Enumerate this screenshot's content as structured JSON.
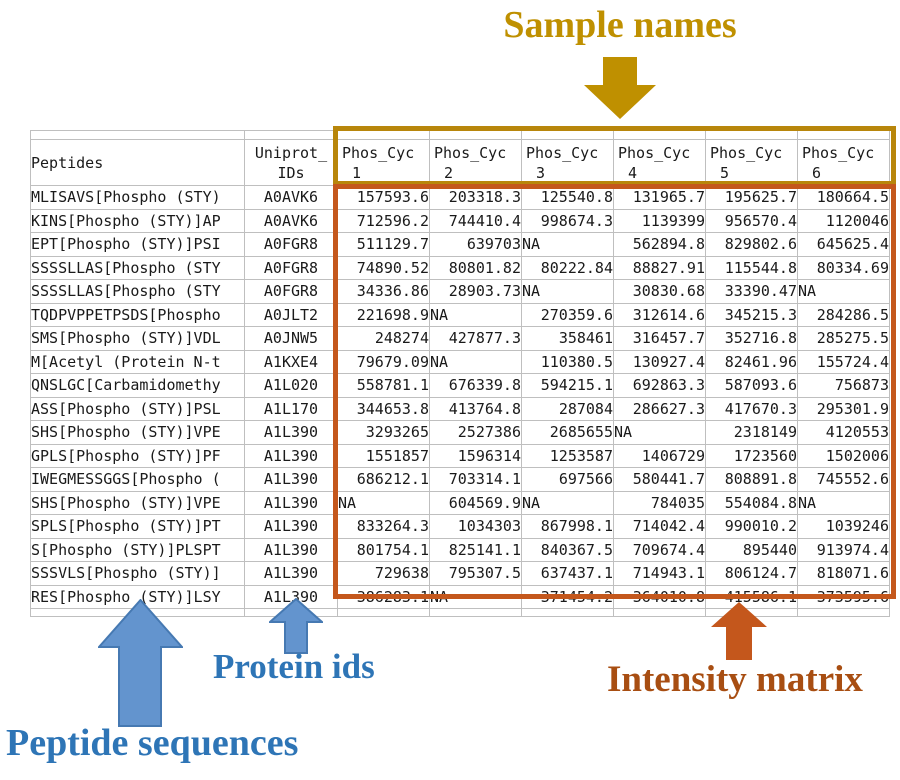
{
  "annotations": {
    "sample_names": "Sample names",
    "peptide_sequences": "Peptide sequences",
    "protein_ids": "Protein ids",
    "intensity_matrix": "Intensity matrix"
  },
  "colors": {
    "header_fill_blue": "#9CC2E5",
    "header_fill_yellow": "#FFFF00",
    "sample_box_border": "#B8860B",
    "sample_label": "#BF9000",
    "matrix_box_border": "#C4571C",
    "matrix_label": "#A84E12",
    "blue_label": "#2E75B6",
    "blue_arrow_fill": "#6394CE",
    "orange_arrow_fill": "#C4571C",
    "gridline": "#BFBFBF"
  },
  "table": {
    "peptides_header": "Peptides",
    "uniprot_header_line1": "Uniprot_",
    "uniprot_header_line2": "IDs",
    "sample_headers": [
      {
        "name": "Phos_Cyc",
        "num": "1"
      },
      {
        "name": "Phos_Cyc",
        "num": "2"
      },
      {
        "name": "Phos_Cyc",
        "num": "3"
      },
      {
        "name": "Phos_Cyc",
        "num": "4"
      },
      {
        "name": "Phos_Cyc",
        "num": "5"
      },
      {
        "name": "Phos_Cyc",
        "num": "6"
      }
    ],
    "rows": [
      {
        "peptide": "MLISAVS[Phospho (STY)",
        "uniprot": "A0AVK6",
        "values": [
          "157593.6",
          "203318.3",
          "125540.8",
          "131965.7",
          "195625.7",
          "180664.5"
        ]
      },
      {
        "peptide": "KINS[Phospho (STY)]AP",
        "uniprot": "A0AVK6",
        "values": [
          "712596.2",
          "744410.4",
          "998674.3",
          "1139399",
          "956570.4",
          "1120046"
        ]
      },
      {
        "peptide": "EPT[Phospho (STY)]PSI",
        "uniprot": "A0FGR8",
        "values": [
          "511129.7",
          "639703",
          "NA",
          "562894.8",
          "829802.6",
          "645625.4"
        ]
      },
      {
        "peptide": "SSSSLLAS[Phospho (STY",
        "uniprot": "A0FGR8",
        "values": [
          "74890.52",
          "80801.82",
          "80222.84",
          "88827.91",
          "115544.8",
          "80334.69"
        ]
      },
      {
        "peptide": "SSSSLLAS[Phospho (STY",
        "uniprot": "A0FGR8",
        "values": [
          "34336.86",
          "28903.73",
          "NA",
          "30830.68",
          "33390.47",
          "NA"
        ]
      },
      {
        "peptide": "TQDPVPPETPSDS[Phospho",
        "uniprot": "A0JLT2",
        "values": [
          "221698.9",
          "NA",
          "270359.6",
          "312614.6",
          "345215.3",
          "284286.5"
        ]
      },
      {
        "peptide": "SMS[Phospho (STY)]VDL",
        "uniprot": "A0JNW5",
        "values": [
          "248274",
          "427877.3",
          "358461",
          "316457.7",
          "352716.8",
          "285275.5"
        ]
      },
      {
        "peptide": "M[Acetyl (Protein N-t",
        "uniprot": "A1KXE4",
        "values": [
          "79679.09",
          "NA",
          "110380.5",
          "130927.4",
          "82461.96",
          "155724.4"
        ]
      },
      {
        "peptide": "QNSLGC[Carbamidomethy",
        "uniprot": "A1L020",
        "values": [
          "558781.1",
          "676339.8",
          "594215.1",
          "692863.3",
          "587093.6",
          "756873"
        ]
      },
      {
        "peptide": "ASS[Phospho (STY)]PSL",
        "uniprot": "A1L170",
        "values": [
          "344653.8",
          "413764.8",
          "287084",
          "286627.3",
          "417670.3",
          "295301.9"
        ]
      },
      {
        "peptide": "SHS[Phospho (STY)]VPE",
        "uniprot": "A1L390",
        "values": [
          "3293265",
          "2527386",
          "2685655",
          "NA",
          "2318149",
          "4120553"
        ]
      },
      {
        "peptide": "GPLS[Phospho (STY)]PF",
        "uniprot": "A1L390",
        "values": [
          "1551857",
          "1596314",
          "1253587",
          "1406729",
          "1723560",
          "1502006"
        ]
      },
      {
        "peptide": "IWEGMESSGGS[Phospho (",
        "uniprot": "A1L390",
        "values": [
          "686212.1",
          "703314.1",
          "697566",
          "580441.7",
          "808891.8",
          "745552.6"
        ]
      },
      {
        "peptide": "SHS[Phospho (STY)]VPE",
        "uniprot": "A1L390",
        "values": [
          "NA",
          "604569.9",
          "NA",
          "784035",
          "554084.8",
          "NA"
        ]
      },
      {
        "peptide": "SPLS[Phospho (STY)]PT",
        "uniprot": "A1L390",
        "values": [
          "833264.3",
          "1034303",
          "867998.1",
          "714042.4",
          "990010.2",
          "1039246"
        ]
      },
      {
        "peptide": "S[Phospho (STY)]PLSPT",
        "uniprot": "A1L390",
        "values": [
          "801754.1",
          "825141.1",
          "840367.5",
          "709674.4",
          "895440",
          "913974.4"
        ]
      },
      {
        "peptide": "SSSVLS[Phospho (STY)]",
        "uniprot": "A1L390",
        "values": [
          "729638",
          "795307.5",
          "637437.1",
          "714943.1",
          "806124.7",
          "818071.6"
        ]
      },
      {
        "peptide": "RES[Phospho (STY)]LSY",
        "uniprot": "A1L390",
        "values": [
          "386283.1",
          "NA",
          "371454.2",
          "364010.8",
          "415586.1",
          "373595.6"
        ]
      }
    ]
  }
}
